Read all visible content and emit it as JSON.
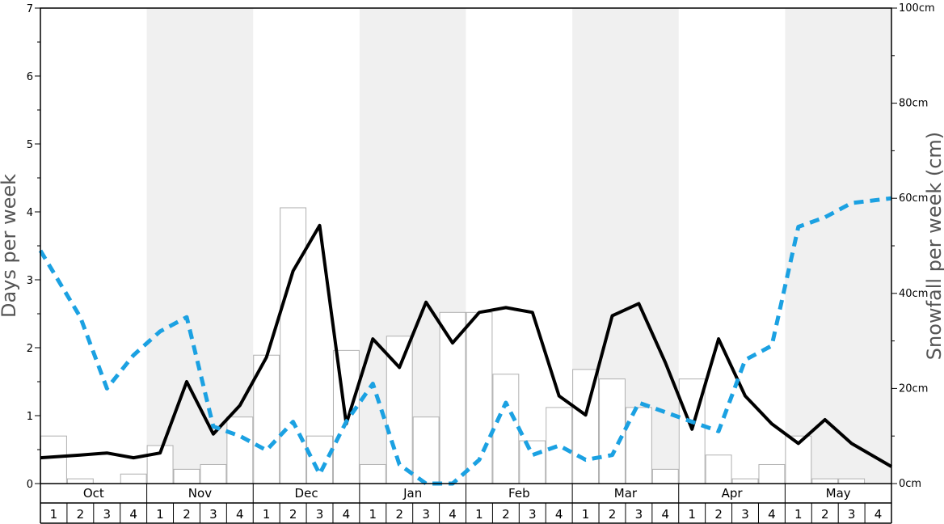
{
  "chart_data": {
    "type": "bar+line",
    "y_left": {
      "label": "Days per week",
      "min": 0,
      "max": 7,
      "ticks": [
        "0",
        "1",
        "2",
        "3",
        "4",
        "5",
        "6",
        "7"
      ]
    },
    "y_right": {
      "label": "Snowfall per week (cm)",
      "min": 0,
      "max": 100,
      "ticks": [
        "0cm",
        "20cm",
        "40cm",
        "60cm",
        "80cm",
        "100cm"
      ]
    },
    "months": [
      "Oct",
      "Nov",
      "Dec",
      "Jan",
      "Feb",
      "Mar",
      "Apr",
      "May"
    ],
    "week_labels": [
      "1",
      "2",
      "3",
      "4",
      "1",
      "2",
      "3",
      "4",
      "1",
      "2",
      "3",
      "4",
      "1",
      "2",
      "3",
      "4",
      "1",
      "2",
      "3",
      "4",
      "1",
      "2",
      "3",
      "4",
      "1",
      "2",
      "3",
      "4",
      "1",
      "2",
      "3",
      "4"
    ],
    "series": [
      {
        "axis": "right",
        "style": "bars",
        "color": "#ffffff",
        "values": [
          10,
          1,
          0,
          2,
          8,
          3,
          4,
          14,
          27,
          58,
          10,
          28,
          4,
          31,
          14,
          36,
          36,
          23,
          9,
          16,
          24,
          22,
          16,
          3,
          22,
          6,
          1,
          4,
          10,
          1,
          1,
          0
        ]
      },
      {
        "axis": "left",
        "style": "solid",
        "color": "#000000",
        "values": [
          0.38,
          0.42,
          0.45,
          0.38,
          0.45,
          1.5,
          0.73,
          1.15,
          1.86,
          3.13,
          3.8,
          0.88,
          2.13,
          1.71,
          2.67,
          2.07,
          2.52,
          2.59,
          2.52,
          1.29,
          1.01,
          2.47,
          2.65,
          1.78,
          0.8,
          2.13,
          1.29,
          0.88,
          0.59,
          0.94,
          0.59,
          0.25
        ]
      },
      {
        "axis": "right",
        "style": "dashed",
        "color": "#1ba1e2",
        "values": [
          49,
          35,
          20,
          27,
          32,
          35,
          12,
          10,
          7,
          13,
          2,
          13,
          21,
          4,
          0,
          0,
          5,
          17,
          6,
          8,
          5,
          6,
          17,
          15,
          13,
          11,
          26,
          29,
          54,
          56,
          59,
          60
        ]
      }
    ]
  }
}
